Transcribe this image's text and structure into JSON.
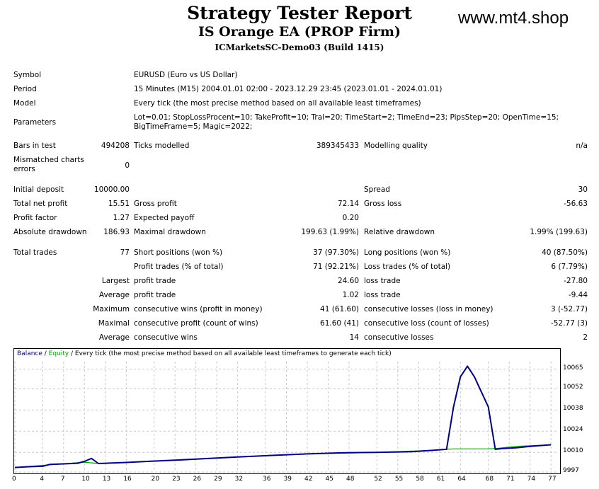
{
  "header": {
    "title": "Strategy Tester Report",
    "subtitle": "IS Orange EA (PROP Firm)",
    "server": "ICMarketsSC-Demo03 (Build 1415)",
    "watermark": "www.mt4.shop"
  },
  "info": {
    "symbol_label": "Symbol",
    "symbol_value": "EURUSD (Euro vs US Dollar)",
    "period_label": "Period",
    "period_value": "15 Minutes (M15) 2004.01.01 02:00 - 2023.12.29 23:45 (2023.01.01 - 2024.01.01)",
    "model_label": "Model",
    "model_value": "Every tick (the most precise method based on all available least timeframes)",
    "parameters_label": "Parameters",
    "parameters_value": "Lot=0.01; StopLossProcent=10; TakeProfit=10; Tral=20; TimeStart=2; TimeEnd=23; PipsStep=20; OpenTime=15; BigTimeFrame=5; Magic=2022;"
  },
  "bars": {
    "bars_label": "Bars in test",
    "bars_value": "494208",
    "ticks_label": "Ticks modelled",
    "ticks_value": "389345433",
    "quality_label": "Modelling quality",
    "quality_value": "n/a",
    "mismatch_label": "Mismatched charts errors",
    "mismatch_value": "0"
  },
  "results": {
    "initial_deposit_label": "Initial deposit",
    "initial_deposit_value": "10000.00",
    "spread_label": "Spread",
    "spread_value": "30",
    "net_profit_label": "Total net profit",
    "net_profit_value": "15.51",
    "gross_profit_label": "Gross profit",
    "gross_profit_value": "72.14",
    "gross_loss_label": "Gross loss",
    "gross_loss_value": "-56.63",
    "profit_factor_label": "Profit factor",
    "profit_factor_value": "1.27",
    "expected_payoff_label": "Expected payoff",
    "expected_payoff_value": "0.20",
    "abs_dd_label": "Absolute drawdown",
    "abs_dd_value": "186.93",
    "max_dd_label": "Maximal drawdown",
    "max_dd_value": "199.63 (1.99%)",
    "rel_dd_label": "Relative drawdown",
    "rel_dd_value": "1.99% (199.63)"
  },
  "trades": {
    "total_label": "Total trades",
    "total_value": "77",
    "short_label": "Short positions (won %)",
    "short_value": "37 (97.30%)",
    "long_label": "Long positions (won %)",
    "long_value": "40 (87.50%)",
    "profit_trades_label": "Profit trades (% of total)",
    "profit_trades_value": "71 (92.21%)",
    "loss_trades_label": "Loss trades (% of total)",
    "loss_trades_value": "6 (7.79%)",
    "largest_label": "Largest",
    "largest_profit_label": "profit trade",
    "largest_profit_value": "24.60",
    "largest_loss_label": "loss trade",
    "largest_loss_value": "-27.80",
    "average_label": "Average",
    "average_profit_label": "profit trade",
    "average_profit_value": "1.02",
    "average_loss_label": "loss trade",
    "average_loss_value": "-9.44",
    "maximum_label": "Maximum",
    "max_cons_wins_label": "consecutive wins (profit in money)",
    "max_cons_wins_value": "41 (61.60)",
    "max_cons_losses_label": "consecutive losses (loss in money)",
    "max_cons_losses_value": "3 (-52.77)",
    "maximal_label": "Maximal",
    "maximal_profit_label": "consecutive profit (count of wins)",
    "maximal_profit_value": "61.60 (41)",
    "maximal_loss_label": "consecutive loss (count of losses)",
    "maximal_loss_value": "-52.77 (3)",
    "avg_cons_label": "Average",
    "avg_cons_wins_label": "consecutive wins",
    "avg_cons_wins_value": "14",
    "avg_cons_losses_label": "consecutive losses",
    "avg_cons_losses_value": "2"
  },
  "chart_data": {
    "type": "line",
    "legend_balance": "Balance",
    "legend_sep1": " / ",
    "legend_equity": "Equity",
    "legend_rest": " / Every tick (the most precise method based on all available least timeframes to generate each tick)",
    "xlim": [
      0,
      78
    ],
    "ylim": [
      9997,
      10070
    ],
    "x_ticks": [
      0,
      4,
      7,
      10,
      13,
      16,
      20,
      23,
      26,
      29,
      32,
      36,
      39,
      42,
      45,
      48,
      52,
      55,
      58,
      61,
      64,
      68,
      71,
      74,
      77
    ],
    "y_ticks": [
      9997,
      10010,
      10024,
      10038,
      10052,
      10065
    ],
    "grid": true,
    "colors": {
      "balance": "#000080",
      "equity": "#00a000",
      "grid": "#c8c8c8"
    },
    "series": [
      {
        "name": "Balance",
        "x": [
          0,
          2,
          4,
          5,
          7,
          9,
          10,
          11,
          12,
          13,
          16,
          19,
          23,
          27,
          32,
          37,
          42,
          47,
          52,
          57,
          60,
          62,
          63,
          64,
          65,
          66,
          68,
          69,
          70,
          72,
          74,
          77
        ],
        "y": [
          10000,
          10000.5,
          10000.8,
          10002,
          10002.4,
          10002.8,
          10004,
          10006,
          10002.6,
          10002.8,
          10003.3,
          10004,
          10004.8,
          10005.8,
          10006.9,
          10008,
          10009,
          10009.7,
          10010,
          10010.5,
          10011.3,
          10012,
          10040,
          10060,
          10067,
          10060,
          10040,
          10012,
          10012.5,
          10013,
          10014,
          10015
        ]
      },
      {
        "name": "Equity",
        "x": [
          0,
          10,
          12,
          16,
          23,
          32,
          42,
          52,
          60,
          62,
          63,
          68,
          69,
          72,
          77
        ],
        "y": [
          10000,
          10003.5,
          10002.6,
          10003.3,
          10004.8,
          10006.9,
          10009,
          10010,
          10011.3,
          10012,
          10012.3,
          10012.3,
          10012.5,
          10014,
          10015
        ]
      }
    ]
  }
}
